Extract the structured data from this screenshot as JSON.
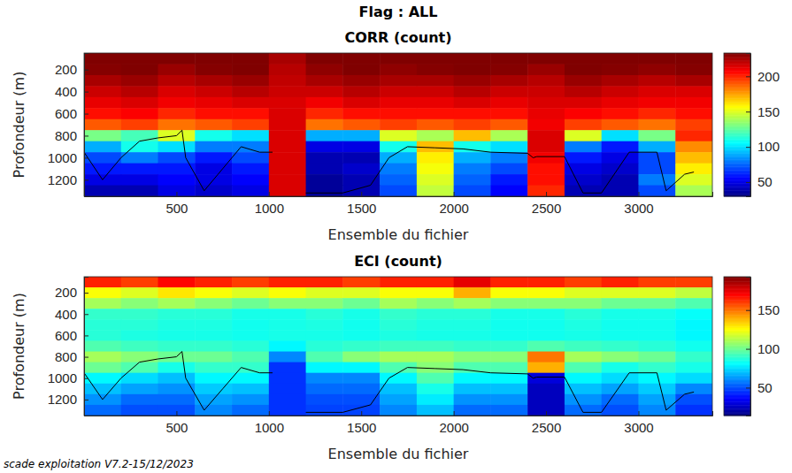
{
  "title": "Flag : ALL",
  "footer": "scade exploitation V7.2-15/12/2023",
  "chart_data": [
    {
      "type": "heatmap",
      "title": "CORR (count)",
      "xlabel": "Ensemble du fichier",
      "ylabel": "Profondeur (m)",
      "xlim": [
        0,
        3400
      ],
      "ylim": [
        50,
        1350
      ],
      "xticks": [
        500,
        1000,
        1500,
        2000,
        2500,
        3000
      ],
      "yticks": [
        200,
        400,
        600,
        800,
        1000,
        1200
      ],
      "grid": false,
      "x": [
        100,
        300,
        500,
        700,
        900,
        1100,
        1300,
        1500,
        1700,
        1900,
        2100,
        2300,
        2500,
        2700,
        2900,
        3100,
        3300
      ],
      "y": [
        100,
        200,
        300,
        400,
        500,
        600,
        700,
        800,
        900,
        1000,
        1100,
        1200,
        1300
      ],
      "values": [
        [
          238,
          240,
          235,
          238,
          240,
          225,
          238,
          240,
          235,
          238,
          240,
          238,
          235,
          240,
          238,
          235,
          238
        ],
        [
          232,
          235,
          228,
          232,
          235,
          222,
          230,
          235,
          230,
          232,
          235,
          232,
          228,
          235,
          232,
          230,
          232
        ],
        [
          225,
          228,
          222,
          225,
          228,
          220,
          225,
          228,
          225,
          225,
          228,
          225,
          222,
          228,
          225,
          222,
          225
        ],
        [
          218,
          222,
          215,
          218,
          222,
          218,
          218,
          222,
          218,
          218,
          222,
          218,
          218,
          222,
          218,
          215,
          215
        ],
        [
          212,
          215,
          210,
          212,
          215,
          215,
          210,
          215,
          212,
          212,
          215,
          212,
          215,
          215,
          212,
          210,
          210
        ],
        [
          205,
          208,
          200,
          205,
          205,
          215,
          200,
          205,
          205,
          205,
          205,
          205,
          212,
          208,
          205,
          200,
          205
        ],
        [
          190,
          195,
          185,
          190,
          195,
          215,
          185,
          190,
          195,
          190,
          195,
          190,
          210,
          195,
          190,
          185,
          195
        ],
        [
          130,
          120,
          150,
          110,
          100,
          215,
          90,
          90,
          150,
          140,
          170,
          140,
          215,
          150,
          100,
          130,
          200
        ],
        [
          90,
          110,
          100,
          80,
          80,
          215,
          50,
          50,
          110,
          170,
          110,
          100,
          215,
          80,
          60,
          90,
          180
        ],
        [
          70,
          80,
          70,
          60,
          70,
          215,
          40,
          40,
          90,
          160,
          90,
          80,
          210,
          60,
          50,
          70,
          170
        ],
        [
          60,
          60,
          60,
          50,
          60,
          215,
          40,
          45,
          80,
          155,
          80,
          70,
          205,
          50,
          45,
          70,
          160
        ],
        [
          50,
          50,
          55,
          50,
          55,
          215,
          35,
          40,
          75,
          150,
          75,
          60,
          205,
          45,
          40,
          80,
          150
        ],
        [
          40,
          40,
          50,
          45,
          50,
          215,
          35,
          40,
          70,
          145,
          70,
          55,
          200,
          40,
          40,
          70,
          140
        ]
      ],
      "colorbar": {
        "range": [
          30,
          233
        ],
        "ticks": [
          50,
          100,
          150,
          200
        ]
      },
      "series": [
        {
          "type": "line",
          "color": "#000000",
          "x": [
            0,
            100,
            200,
            300,
            400,
            500,
            530,
            550,
            650,
            750,
            850,
            950,
            1020,
            1100,
            1200,
            1400,
            1550,
            1650,
            1750,
            1900,
            2050,
            2200,
            2400,
            2430,
            2450,
            2600,
            2700,
            2800,
            2950,
            3100,
            3150,
            3250,
            3300
          ],
          "values": [
            950,
            1200,
            1000,
            850,
            820,
            800,
            750,
            1000,
            1300,
            1100,
            900,
            950,
            950,
            null,
            1320,
            1320,
            1250,
            1000,
            900,
            910,
            920,
            950,
            960,
            1000,
            990,
            990,
            1320,
            1320,
            950,
            950,
            1300,
            1150,
            1130
          ]
        }
      ]
    },
    {
      "type": "heatmap",
      "title": "ECI (count)",
      "xlabel": "Ensemble du fichier",
      "ylabel": "Profondeur (m)",
      "xlim": [
        0,
        3400
      ],
      "ylim": [
        50,
        1350
      ],
      "xticks": [
        500,
        1000,
        1500,
        2000,
        2500,
        3000
      ],
      "yticks": [
        200,
        400,
        600,
        800,
        1000,
        1200
      ],
      "grid": false,
      "x": [
        100,
        300,
        500,
        700,
        900,
        1100,
        1300,
        1500,
        1700,
        1900,
        2100,
        2300,
        2500,
        2700,
        2900,
        3100,
        3300
      ],
      "y": [
        100,
        200,
        300,
        400,
        500,
        600,
        700,
        800,
        900,
        1000,
        1100,
        1200,
        1300
      ],
      "values": [
        [
          165,
          160,
          170,
          165,
          160,
          165,
          165,
          160,
          165,
          165,
          175,
          165,
          165,
          160,
          165,
          160,
          160
        ],
        [
          125,
          120,
          130,
          125,
          120,
          125,
          120,
          120,
          125,
          125,
          140,
          125,
          125,
          120,
          120,
          120,
          115
        ],
        [
          110,
          105,
          110,
          105,
          100,
          105,
          105,
          100,
          110,
          105,
          110,
          105,
          105,
          105,
          100,
          100,
          95
        ],
        [
          90,
          90,
          88,
          88,
          85,
          85,
          88,
          85,
          90,
          88,
          88,
          85,
          85,
          88,
          85,
          85,
          82
        ],
        [
          88,
          88,
          86,
          86,
          84,
          85,
          86,
          84,
          88,
          86,
          86,
          84,
          84,
          86,
          84,
          84,
          80
        ],
        [
          88,
          86,
          85,
          85,
          84,
          85,
          85,
          84,
          86,
          85,
          85,
          84,
          84,
          85,
          84,
          84,
          80
        ],
        [
          95,
          92,
          90,
          90,
          88,
          80,
          88,
          90,
          92,
          92,
          90,
          90,
          95,
          92,
          90,
          88,
          84
        ],
        [
          110,
          105,
          100,
          100,
          95,
          60,
          95,
          105,
          110,
          110,
          105,
          105,
          150,
          110,
          105,
          100,
          90
        ],
        [
          100,
          95,
          85,
          90,
          90,
          45,
          80,
          80,
          95,
          105,
          95,
          95,
          140,
          95,
          85,
          90,
          85
        ],
        [
          80,
          75,
          70,
          80,
          80,
          45,
          60,
          60,
          80,
          95,
          80,
          80,
          30,
          80,
          75,
          80,
          75
        ],
        [
          70,
          65,
          62,
          72,
          70,
          45,
          55,
          55,
          70,
          85,
          70,
          70,
          25,
          70,
          65,
          72,
          60
        ],
        [
          62,
          55,
          55,
          65,
          62,
          45,
          50,
          50,
          65,
          78,
          62,
          62,
          25,
          62,
          55,
          65,
          50
        ],
        [
          55,
          50,
          50,
          60,
          55,
          45,
          48,
          48,
          60,
          70,
          55,
          55,
          25,
          55,
          50,
          60,
          45
        ]
      ],
      "colorbar": {
        "range": [
          14,
          193
        ],
        "ticks": [
          50,
          100,
          150
        ]
      },
      "series": [
        {
          "type": "line",
          "color": "#000000",
          "x": [
            0,
            100,
            200,
            300,
            400,
            500,
            530,
            550,
            650,
            750,
            850,
            950,
            1020,
            1100,
            1200,
            1400,
            1550,
            1650,
            1750,
            1900,
            2050,
            2200,
            2400,
            2430,
            2450,
            2600,
            2700,
            2800,
            2950,
            3100,
            3150,
            3250,
            3300
          ],
          "values": [
            950,
            1200,
            1000,
            850,
            820,
            800,
            750,
            1000,
            1300,
            1100,
            900,
            950,
            950,
            null,
            1320,
            1320,
            1250,
            1000,
            900,
            910,
            920,
            950,
            960,
            1000,
            990,
            990,
            1320,
            1320,
            950,
            950,
            1300,
            1150,
            1130
          ]
        }
      ]
    }
  ]
}
